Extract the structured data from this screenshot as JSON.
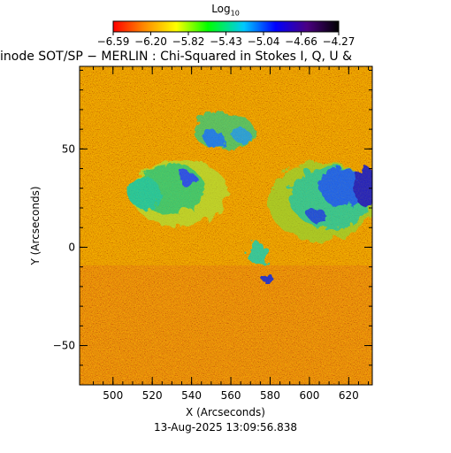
{
  "colorbar": {
    "label_base": "Log",
    "label_sub": "10",
    "ticks": [
      "−6.59",
      "−6.20",
      "−5.82",
      "−5.43",
      "−5.04",
      "−4.66",
      "−4.27"
    ],
    "palette": [
      "#ff0000",
      "#ff8c00",
      "#ffff00",
      "#00ff00",
      "#00c8ff",
      "#0000ff",
      "#4b0082",
      "#000000"
    ]
  },
  "title": "inode SOT/SP − MERLIN : Chi-Squared in Stokes I, Q, U &",
  "x_axis": {
    "label": "X (Arcseconds)",
    "range": [
      483,
      632
    ],
    "ticks": [
      {
        "value": 500,
        "label": "500"
      },
      {
        "value": 520,
        "label": "520"
      },
      {
        "value": 540,
        "label": "540"
      },
      {
        "value": 560,
        "label": "560"
      },
      {
        "value": 580,
        "label": "580"
      },
      {
        "value": 600,
        "label": "600"
      },
      {
        "value": 620,
        "label": "620"
      }
    ]
  },
  "y_axis": {
    "label": "Y (Arcseconds)",
    "range": [
      -70,
      92
    ],
    "ticks": [
      {
        "value": -50,
        "label": "−50"
      },
      {
        "value": 0,
        "label": "0"
      },
      {
        "value": 50,
        "label": "50"
      }
    ]
  },
  "timestamp": "13-Aug-2025 13:09:56.838"
}
